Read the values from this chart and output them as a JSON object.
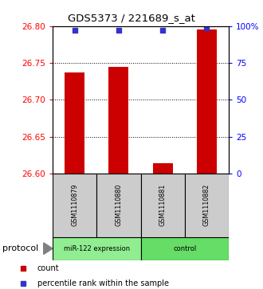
{
  "title": "GDS5373 / 221689_s_at",
  "samples": [
    "GSM1110879",
    "GSM1110880",
    "GSM1110881",
    "GSM1110882"
  ],
  "bar_values": [
    26.737,
    26.745,
    26.614,
    26.795
  ],
  "percentile_values": [
    97,
    97,
    97,
    99
  ],
  "ylim_left": [
    26.6,
    26.8
  ],
  "ylim_right": [
    0,
    100
  ],
  "yticks_left": [
    26.6,
    26.65,
    26.7,
    26.75,
    26.8
  ],
  "yticks_right": [
    0,
    25,
    50,
    75,
    100
  ],
  "bar_color": "#cc0000",
  "percentile_color": "#3333cc",
  "bar_width": 0.45,
  "groups": [
    {
      "label": "miR-122 expression",
      "samples": [
        0,
        1
      ],
      "color": "#90ee90"
    },
    {
      "label": "control",
      "samples": [
        2,
        3
      ],
      "color": "#66dd66"
    }
  ],
  "protocol_label": "protocol",
  "legend_count_label": "count",
  "legend_percentile_label": "percentile rank within the sample",
  "background_color": "#ffffff",
  "plot_bg": "#ffffff",
  "label_bg": "#cccccc"
}
